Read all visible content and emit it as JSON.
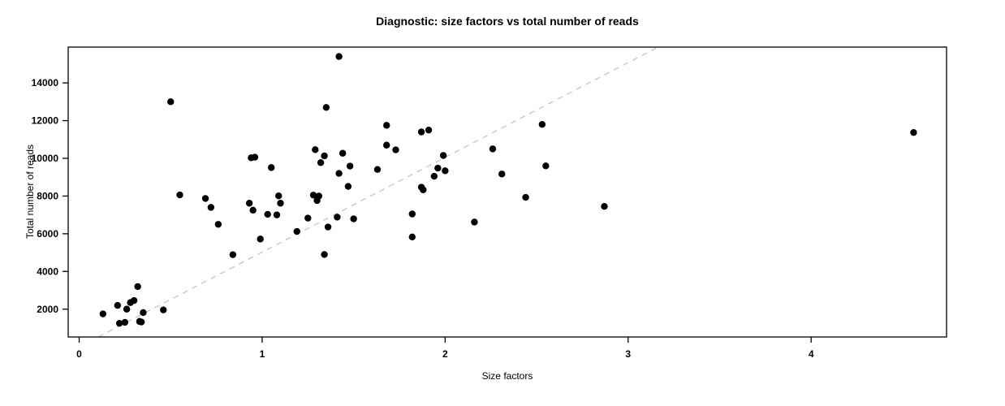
{
  "chart_data": {
    "type": "scatter",
    "title": "Diagnostic: size factors vs total number of reads",
    "xlabel": "Size factors",
    "ylabel": "Total number of reads",
    "xlim": [
      -0.06,
      4.74
    ],
    "ylim": [
      525,
      15900
    ],
    "x_ticks": [
      0,
      1,
      2,
      3,
      4
    ],
    "y_ticks": [
      2000,
      4000,
      6000,
      8000,
      10000,
      12000,
      14000
    ],
    "grid": false,
    "legend": "none",
    "background_color": "#ffffff",
    "point_color": "#000000",
    "point_radius": 4.2,
    "box_color": "#000000",
    "reference_line": {
      "slope": 5026,
      "intercept": 0,
      "style": "dashed",
      "color": "#c9c9c9"
    },
    "points": [
      [
        0.13,
        1750
      ],
      [
        0.21,
        2200
      ],
      [
        0.22,
        1250
      ],
      [
        0.25,
        1300
      ],
      [
        0.26,
        2000
      ],
      [
        0.28,
        2350
      ],
      [
        0.3,
        2460
      ],
      [
        0.32,
        3200
      ],
      [
        0.33,
        1350
      ],
      [
        0.34,
        1320
      ],
      [
        0.35,
        1820
      ],
      [
        0.46,
        1960
      ],
      [
        0.5,
        13000
      ],
      [
        0.55,
        8060
      ],
      [
        0.69,
        7870
      ],
      [
        0.72,
        7400
      ],
      [
        0.76,
        6500
      ],
      [
        0.84,
        4890
      ],
      [
        0.93,
        7620
      ],
      [
        0.94,
        10030
      ],
      [
        0.95,
        7250
      ],
      [
        0.96,
        10060
      ],
      [
        0.99,
        5720
      ],
      [
        1.03,
        7030
      ],
      [
        1.05,
        9510
      ],
      [
        1.08,
        7000
      ],
      [
        1.09,
        8010
      ],
      [
        1.1,
        7620
      ],
      [
        1.19,
        6120
      ],
      [
        1.25,
        6830
      ],
      [
        1.28,
        8050
      ],
      [
        1.29,
        10460
      ],
      [
        1.3,
        7760
      ],
      [
        1.31,
        8000
      ],
      [
        1.32,
        9770
      ],
      [
        1.34,
        10130
      ],
      [
        1.34,
        4900
      ],
      [
        1.35,
        12700
      ],
      [
        1.36,
        6360
      ],
      [
        1.41,
        6880
      ],
      [
        1.42,
        9200
      ],
      [
        1.42,
        15400
      ],
      [
        1.44,
        10270
      ],
      [
        1.47,
        8510
      ],
      [
        1.48,
        9590
      ],
      [
        1.5,
        6790
      ],
      [
        1.63,
        9410
      ],
      [
        1.68,
        11750
      ],
      [
        1.68,
        10700
      ],
      [
        1.73,
        10450
      ],
      [
        1.82,
        7050
      ],
      [
        1.82,
        5830
      ],
      [
        1.87,
        8470
      ],
      [
        1.87,
        11400
      ],
      [
        1.88,
        8330
      ],
      [
        1.91,
        11500
      ],
      [
        1.94,
        9050
      ],
      [
        1.96,
        9480
      ],
      [
        1.99,
        10150
      ],
      [
        2.0,
        9340
      ],
      [
        2.16,
        6620
      ],
      [
        2.26,
        10500
      ],
      [
        2.31,
        9170
      ],
      [
        2.44,
        7930
      ],
      [
        2.53,
        11800
      ],
      [
        2.55,
        9600
      ],
      [
        2.87,
        7450
      ],
      [
        4.56,
        11370
      ]
    ]
  }
}
